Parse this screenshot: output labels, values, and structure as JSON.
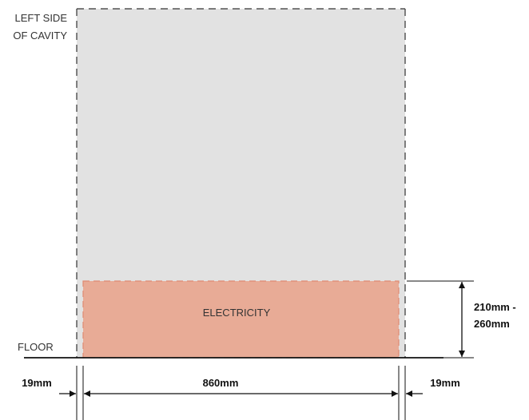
{
  "labels": {
    "left_side_line1": "LEFT SIDE",
    "left_side_line2": "OF CAVITY",
    "floor": "FLOOR",
    "electricity": "ELECTRICITY"
  },
  "dimensions": {
    "height_line1": "210mm -",
    "height_line2": "260mm",
    "left_gap": "19mm",
    "width": "860mm",
    "right_gap": "19mm"
  },
  "colors": {
    "cavity_fill": "#e2e2e2",
    "electricity_fill": "#e8ab96",
    "electricity_outline": "#e08a72",
    "line": "#111111"
  }
}
